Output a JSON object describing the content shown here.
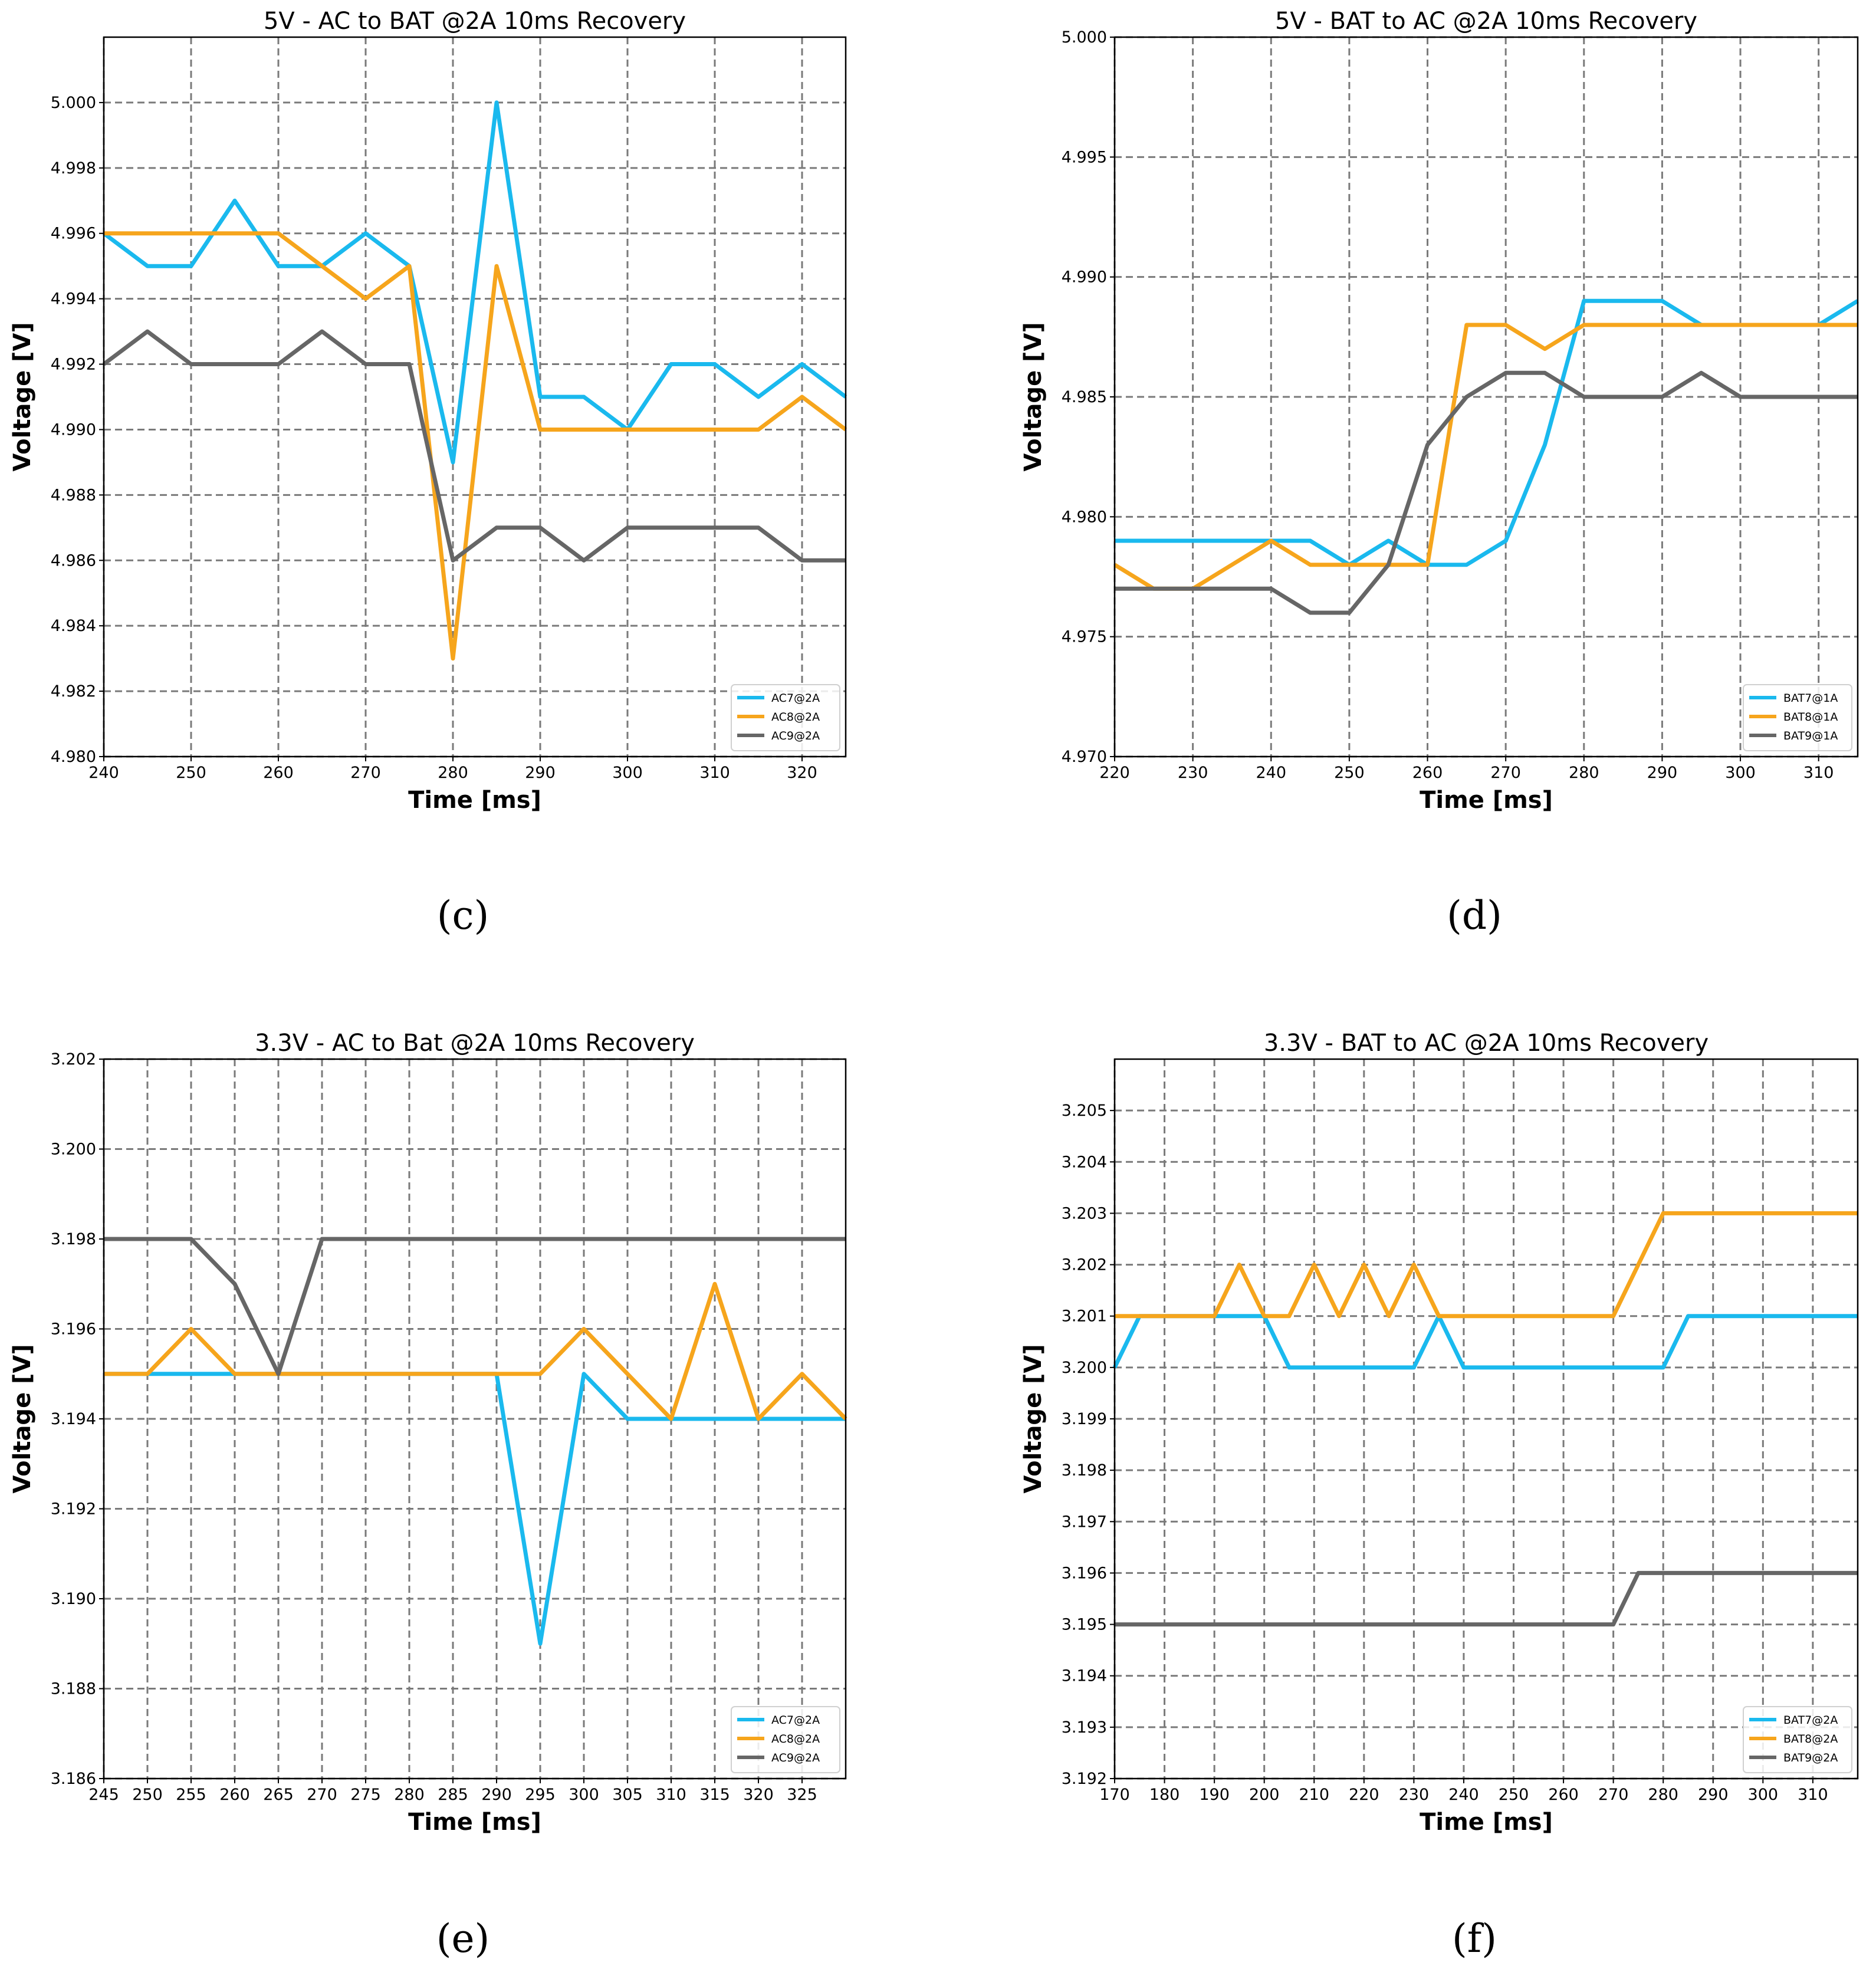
{
  "chart_data": [
    {
      "id": "c",
      "type": "line",
      "caption": "(c)",
      "title": "5V - AC to BAT @2A 10ms Recovery",
      "xlabel": "Time [ms]",
      "ylabel": "Voltage [V]",
      "xlim": [
        240,
        325
      ],
      "ylim": [
        4.98,
        5.002
      ],
      "xticks": [
        240,
        250,
        260,
        270,
        280,
        290,
        300,
        310,
        320
      ],
      "xtick_labels": [
        "240",
        "250",
        "260",
        "270",
        "280",
        "290",
        "300",
        "310",
        "320"
      ],
      "yticks": [
        4.98,
        4.982,
        4.984,
        4.986,
        4.988,
        4.99,
        4.992,
        4.994,
        4.996,
        4.998,
        5.0
      ],
      "ytick_labels": [
        "4.980",
        "4.982",
        "4.984",
        "4.986",
        "4.988",
        "4.990",
        "4.992",
        "4.994",
        "4.996",
        "4.998",
        "5.000"
      ],
      "grid": true,
      "legend": "bottom-right",
      "x": [
        240,
        245,
        250,
        255,
        260,
        265,
        270,
        275,
        280,
        285,
        290,
        295,
        300,
        305,
        310,
        315,
        320,
        325
      ],
      "series": [
        {
          "name": "AC7@2A",
          "color": "#1ab9ee",
          "values": [
            4.996,
            4.995,
            4.995,
            4.997,
            4.995,
            4.995,
            4.996,
            4.995,
            4.989,
            5.0,
            4.991,
            4.991,
            4.99,
            4.992,
            4.992,
            4.991,
            4.992,
            4.991
          ]
        },
        {
          "name": "AC8@2A",
          "color": "#f6a51c",
          "values": [
            4.996,
            4.996,
            4.996,
            4.996,
            4.996,
            4.995,
            4.994,
            4.995,
            4.983,
            4.995,
            4.99,
            4.99,
            4.99,
            4.99,
            4.99,
            4.99,
            4.991,
            4.99
          ]
        },
        {
          "name": "AC9@2A",
          "color": "#666666",
          "values": [
            4.992,
            4.993,
            4.992,
            4.992,
            4.992,
            4.993,
            4.992,
            4.992,
            4.986,
            4.987,
            4.987,
            4.986,
            4.987,
            4.987,
            4.987,
            4.987,
            4.986,
            4.986
          ]
        }
      ]
    },
    {
      "id": "d",
      "type": "line",
      "caption": "(d)",
      "title": "5V - BAT to AC @2A 10ms Recovery",
      "xlabel": "Time [ms]",
      "ylabel": "Voltage [V]",
      "xlim": [
        220,
        315
      ],
      "ylim": [
        4.97,
        5.0
      ],
      "xticks": [
        220,
        230,
        240,
        250,
        260,
        270,
        280,
        290,
        300,
        310
      ],
      "xtick_labels": [
        "220",
        "230",
        "240",
        "250",
        "260",
        "270",
        "280",
        "290",
        "300",
        "310"
      ],
      "yticks": [
        4.97,
        4.975,
        4.98,
        4.985,
        4.99,
        4.995,
        5.0
      ],
      "ytick_labels": [
        "4.970",
        "4.975",
        "4.980",
        "4.985",
        "4.990",
        "4.995",
        "5.000"
      ],
      "grid": true,
      "legend": "bottom-right",
      "x": [
        220,
        225,
        230,
        235,
        240,
        245,
        250,
        255,
        260,
        265,
        270,
        275,
        280,
        285,
        290,
        295,
        300,
        305,
        310,
        315
      ],
      "series": [
        {
          "name": "BAT7@1A",
          "color": "#1ab9ee",
          "values": [
            4.979,
            4.979,
            4.979,
            4.979,
            4.979,
            4.979,
            4.978,
            4.979,
            4.978,
            4.978,
            4.979,
            4.983,
            4.989,
            4.989,
            4.989,
            4.988,
            4.988,
            4.988,
            4.988,
            4.989
          ]
        },
        {
          "name": "BAT8@1A",
          "color": "#f6a51c",
          "values": [
            4.978,
            4.977,
            4.977,
            4.978,
            4.979,
            4.978,
            4.978,
            4.978,
            4.978,
            4.988,
            4.988,
            4.987,
            4.988,
            4.988,
            4.988,
            4.988,
            4.988,
            4.988,
            4.988,
            4.988
          ]
        },
        {
          "name": "BAT9@1A",
          "color": "#666666",
          "values": [
            4.977,
            4.977,
            4.977,
            4.977,
            4.977,
            4.976,
            4.976,
            4.978,
            4.983,
            4.985,
            4.986,
            4.986,
            4.985,
            4.985,
            4.985,
            4.986,
            4.985,
            4.985,
            4.985,
            4.985
          ]
        }
      ]
    },
    {
      "id": "e",
      "type": "line",
      "caption": "(e)",
      "title": "3.3V - AC to Bat @2A 10ms Recovery",
      "xlabel": "Time [ms]",
      "ylabel": "Voltage [V]",
      "xlim": [
        245,
        330
      ],
      "ylim": [
        3.186,
        3.202
      ],
      "xticks": [
        245,
        250,
        255,
        260,
        265,
        270,
        275,
        280,
        285,
        290,
        295,
        300,
        305,
        310,
        315,
        320,
        325
      ],
      "xtick_labels": [
        "245",
        "250",
        "255",
        "260",
        "265",
        "270",
        "275",
        "280",
        "285",
        "290",
        "295",
        "300",
        "305",
        "310",
        "315",
        "320",
        "325"
      ],
      "yticks": [
        3.186,
        3.188,
        3.19,
        3.192,
        3.194,
        3.196,
        3.198,
        3.2,
        3.202
      ],
      "ytick_labels": [
        "3.186",
        "3.188",
        "3.190",
        "3.192",
        "3.194",
        "3.196",
        "3.198",
        "3.200",
        "3.202"
      ],
      "grid": true,
      "legend": "bottom-right",
      "x": [
        245,
        250,
        255,
        260,
        265,
        270,
        275,
        280,
        285,
        290,
        295,
        300,
        305,
        310,
        315,
        320,
        325,
        330
      ],
      "series": [
        {
          "name": "AC7@2A",
          "color": "#1ab9ee",
          "values": [
            3.195,
            3.195,
            3.195,
            3.195,
            3.195,
            3.195,
            3.195,
            3.195,
            3.195,
            3.195,
            3.189,
            3.195,
            3.194,
            3.194,
            3.194,
            3.194,
            3.194,
            3.194
          ]
        },
        {
          "name": "AC8@2A",
          "color": "#f6a51c",
          "values": [
            3.195,
            3.195,
            3.196,
            3.195,
            3.195,
            3.195,
            3.195,
            3.195,
            3.195,
            3.195,
            3.195,
            3.196,
            3.195,
            3.194,
            3.197,
            3.194,
            3.195,
            3.194
          ]
        },
        {
          "name": "AC9@2A",
          "color": "#666666",
          "values": [
            3.198,
            3.198,
            3.198,
            3.197,
            3.195,
            3.198,
            3.198,
            3.198,
            3.198,
            3.198,
            3.198,
            3.198,
            3.198,
            3.198,
            3.198,
            3.198,
            3.198,
            3.198
          ]
        }
      ]
    },
    {
      "id": "f",
      "type": "line",
      "caption": "(f)",
      "title": "3.3V - BAT to AC @2A 10ms Recovery",
      "xlabel": "Time [ms]",
      "ylabel": "Voltage [V]",
      "xlim": [
        170,
        319
      ],
      "ylim": [
        3.192,
        3.206
      ],
      "xticks": [
        170,
        180,
        190,
        200,
        210,
        220,
        230,
        240,
        250,
        260,
        270,
        280,
        290,
        300,
        310
      ],
      "xtick_labels": [
        "170",
        "180",
        "190",
        "200",
        "210",
        "220",
        "230",
        "240",
        "250",
        "260",
        "270",
        "280",
        "290",
        "300",
        "310"
      ],
      "yticks": [
        3.192,
        3.193,
        3.194,
        3.195,
        3.196,
        3.197,
        3.198,
        3.199,
        3.2,
        3.201,
        3.202,
        3.203,
        3.204,
        3.205
      ],
      "ytick_labels": [
        "3.192",
        "3.193",
        "3.194",
        "3.195",
        "3.196",
        "3.197",
        "3.198",
        "3.199",
        "3.200",
        "3.201",
        "3.202",
        "3.203",
        "3.204",
        "3.205"
      ],
      "grid": true,
      "legend": "bottom-right",
      "x": [
        170,
        175,
        180,
        185,
        190,
        195,
        200,
        205,
        210,
        215,
        220,
        225,
        230,
        235,
        240,
        245,
        250,
        255,
        260,
        265,
        270,
        275,
        280,
        285,
        290,
        295,
        300,
        305,
        310,
        315,
        319
      ],
      "series": [
        {
          "name": "BAT7@2A",
          "color": "#1ab9ee",
          "values": [
            3.2,
            3.201,
            3.201,
            3.201,
            3.201,
            3.201,
            3.201,
            3.2,
            3.2,
            3.2,
            3.2,
            3.2,
            3.2,
            3.201,
            3.2,
            3.2,
            3.2,
            3.2,
            3.2,
            3.2,
            3.2,
            3.2,
            3.2,
            3.201,
            3.201,
            3.201,
            3.201,
            3.201,
            3.201,
            3.201,
            3.201
          ]
        },
        {
          "name": "BAT8@2A",
          "color": "#f6a51c",
          "values": [
            3.201,
            3.201,
            3.201,
            3.201,
            3.201,
            3.202,
            3.201,
            3.201,
            3.202,
            3.201,
            3.202,
            3.201,
            3.202,
            3.201,
            3.201,
            3.201,
            3.201,
            3.201,
            3.201,
            3.201,
            3.201,
            3.202,
            3.203,
            3.203,
            3.203,
            3.203,
            3.203,
            3.203,
            3.203,
            3.203,
            3.203
          ]
        },
        {
          "name": "BAT9@2A",
          "color": "#666666",
          "values": [
            3.195,
            3.195,
            3.195,
            3.195,
            3.195,
            3.195,
            3.195,
            3.195,
            3.195,
            3.195,
            3.195,
            3.195,
            3.195,
            3.195,
            3.195,
            3.195,
            3.195,
            3.195,
            3.195,
            3.195,
            3.195,
            3.196,
            3.196,
            3.196,
            3.196,
            3.196,
            3.196,
            3.196,
            3.196,
            3.196,
            3.196
          ]
        }
      ]
    }
  ]
}
